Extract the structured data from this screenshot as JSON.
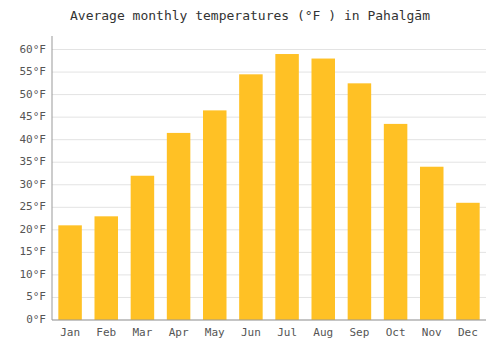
{
  "chart_data": {
    "type": "bar",
    "title": "Average monthly temperatures (°F ) in Pahalgām",
    "categories": [
      "Jan",
      "Feb",
      "Mar",
      "Apr",
      "May",
      "Jun",
      "Jul",
      "Aug",
      "Sep",
      "Oct",
      "Nov",
      "Dec"
    ],
    "values": [
      21,
      23,
      32,
      41.5,
      46.5,
      54.5,
      59,
      58,
      52.5,
      43.5,
      34,
      26
    ],
    "color": "#FFC125",
    "ylim": [
      0,
      63
    ],
    "yticks": [
      {
        "value": 0,
        "label": "0°F"
      },
      {
        "value": 5,
        "label": "5°F"
      },
      {
        "value": 10,
        "label": "10°F"
      },
      {
        "value": 15,
        "label": "15°F"
      },
      {
        "value": 20,
        "label": "20°F"
      },
      {
        "value": 25,
        "label": "25°F"
      },
      {
        "value": 30,
        "label": "30°F"
      },
      {
        "value": 35,
        "label": "35°F"
      },
      {
        "value": 40,
        "label": "40°F"
      },
      {
        "value": 45,
        "label": "45°F"
      },
      {
        "value": 50,
        "label": "50°F"
      },
      {
        "value": 55,
        "label": "55°F"
      },
      {
        "value": 60,
        "label": "60°F"
      }
    ],
    "grid": true
  }
}
